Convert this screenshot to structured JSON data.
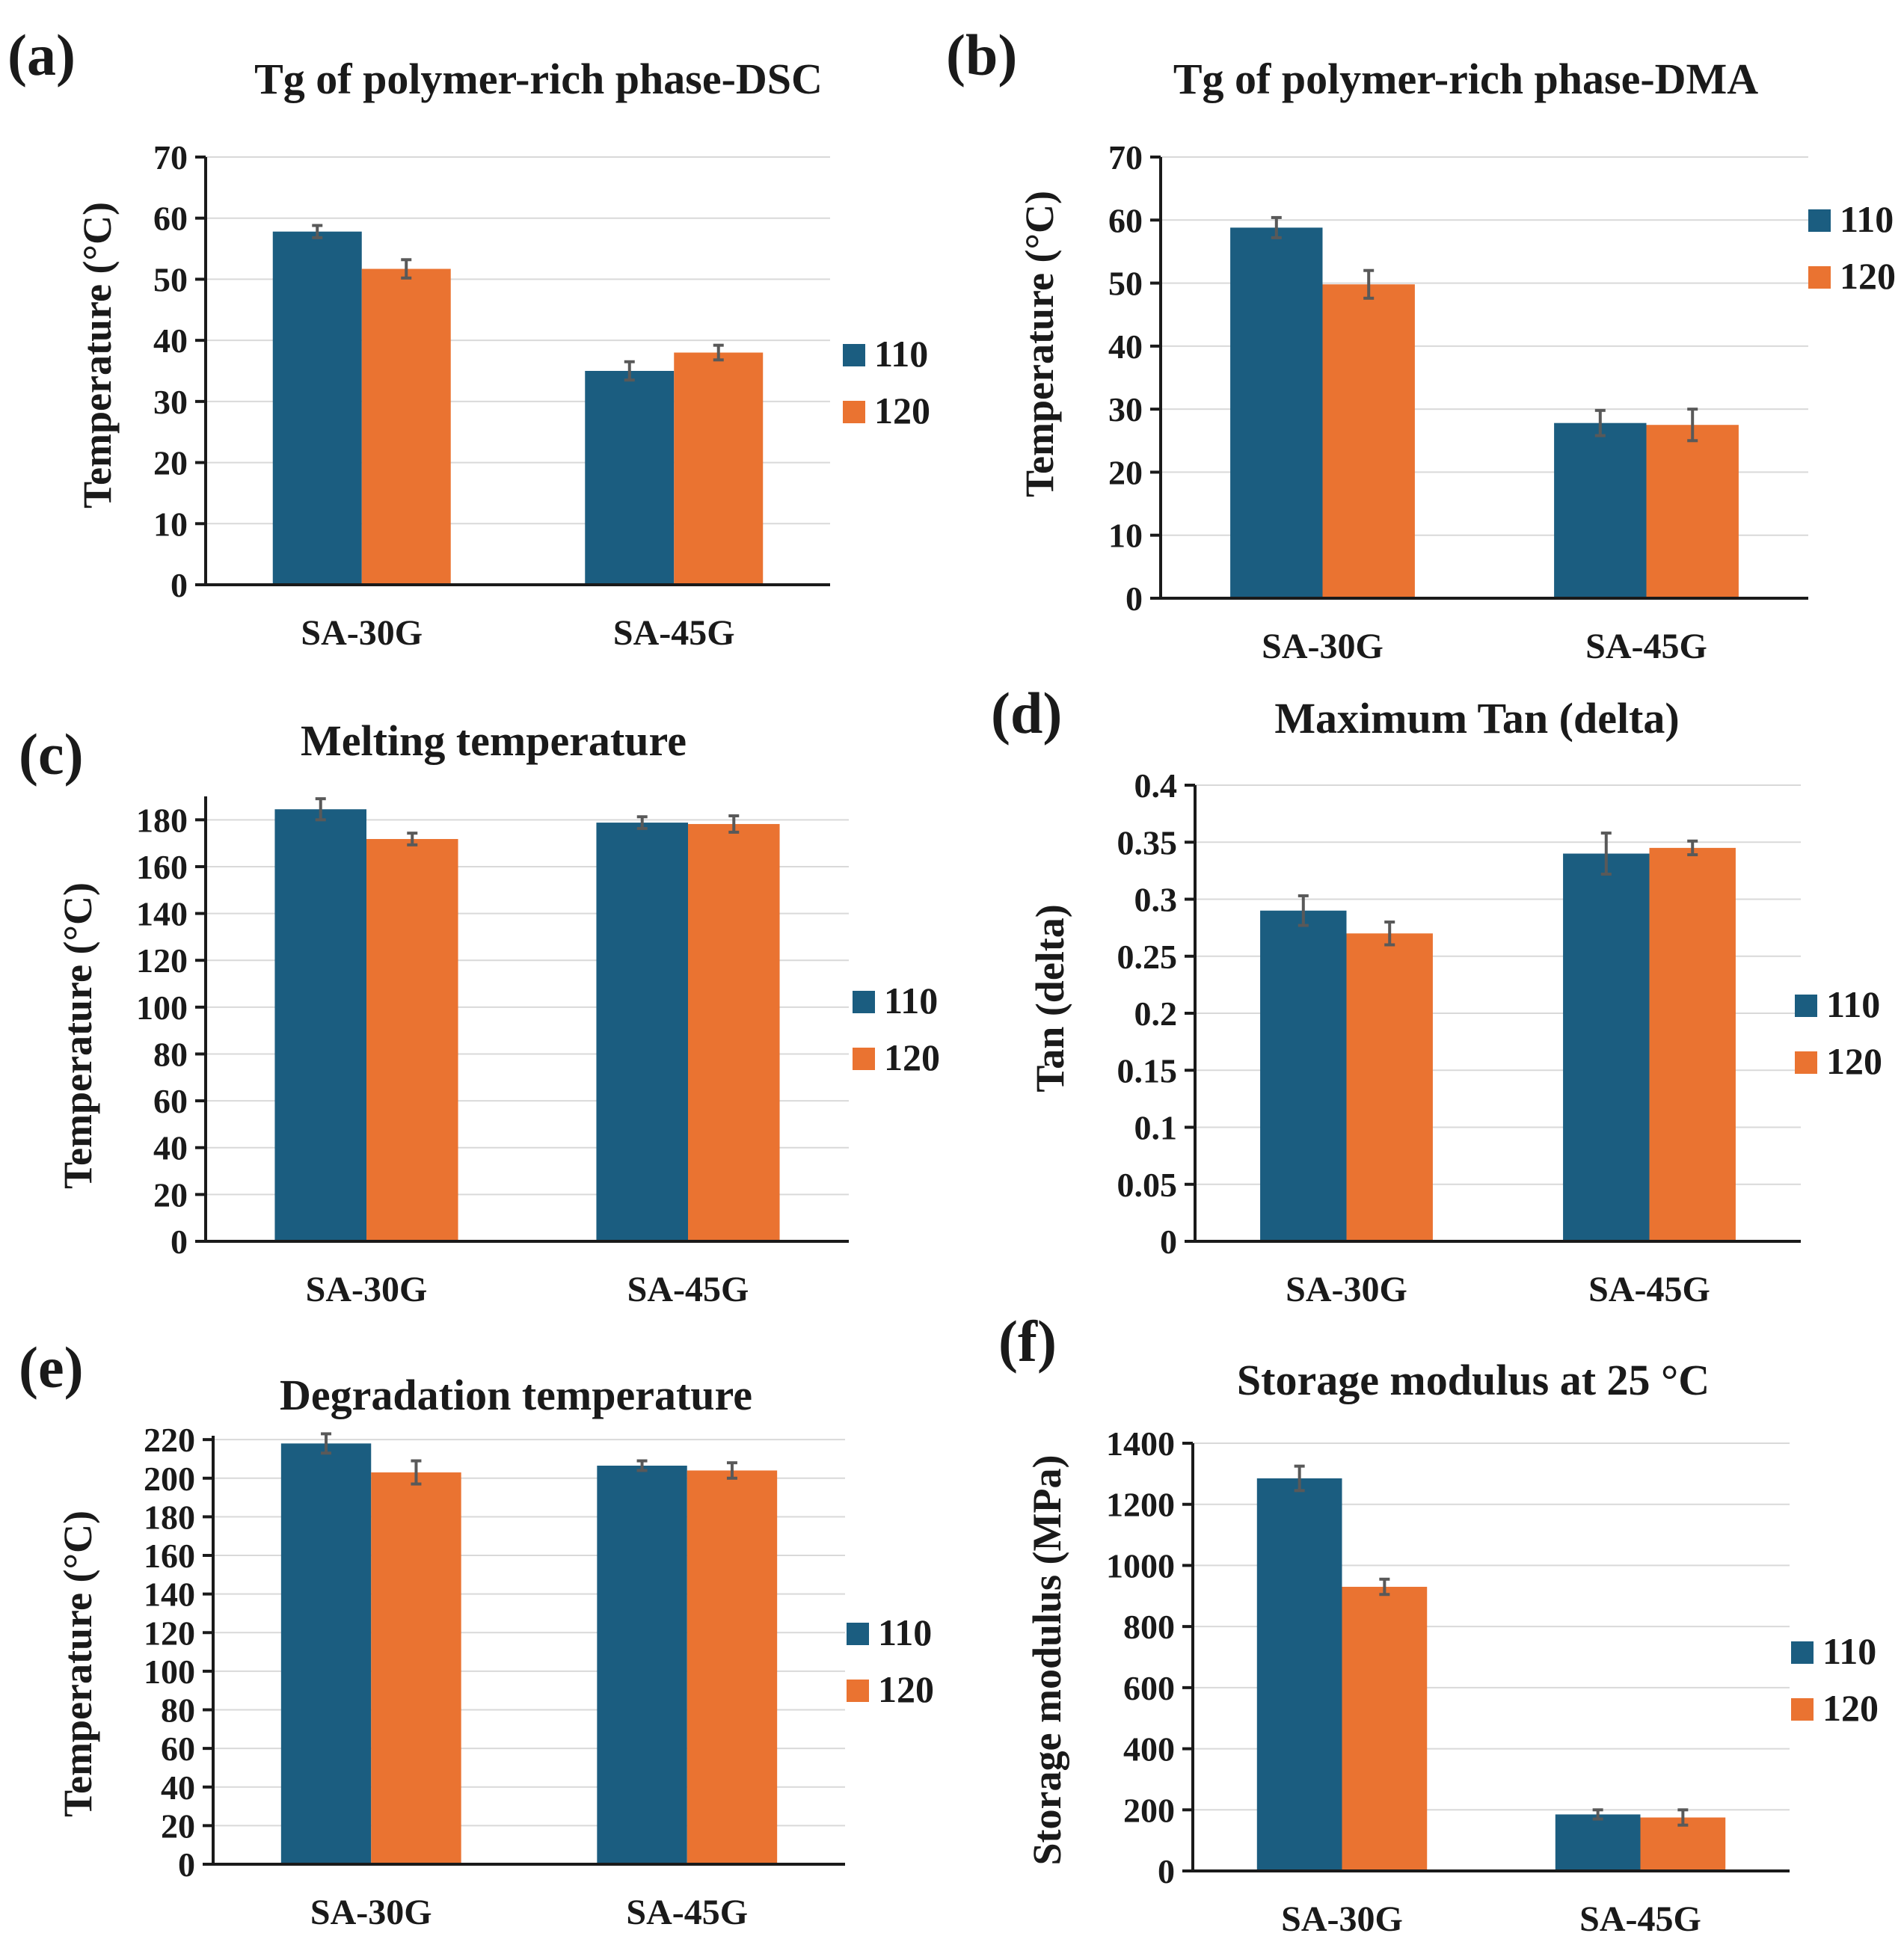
{
  "colors": {
    "s110": "#1b5d80",
    "s120": "#ea7331"
  },
  "chart_data": [
    {
      "panel": "(a)",
      "type": "bar",
      "title": "Tg of polymer-rich phase-DSC",
      "ylabel": "Temperature (°C)",
      "categories": [
        "SA-30G",
        "SA-45G"
      ],
      "ylim": [
        0,
        70
      ],
      "yticks": [
        "0",
        "10",
        "20",
        "30",
        "40",
        "50",
        "60",
        "70"
      ],
      "legend": [
        "110",
        "120"
      ],
      "series": [
        {
          "name": "110",
          "values": [
            57.8,
            35.0
          ],
          "errors": [
            1.0,
            1.5
          ]
        },
        {
          "name": "120",
          "values": [
            51.7,
            38.0
          ],
          "errors": [
            1.5,
            1.2
          ]
        }
      ]
    },
    {
      "panel": "(b)",
      "type": "bar",
      "title": "Tg of polymer-rich phase-DMA",
      "ylabel": "Temperature (°C)",
      "categories": [
        "SA-30G",
        "SA-45G"
      ],
      "ylim": [
        0,
        70
      ],
      "yticks": [
        "0",
        "10",
        "20",
        "30",
        "40",
        "50",
        "60",
        "70"
      ],
      "legend": [
        "110",
        "120"
      ],
      "series": [
        {
          "name": "110",
          "values": [
            58.8,
            27.8
          ],
          "errors": [
            1.6,
            2.0
          ]
        },
        {
          "name": "120",
          "values": [
            49.8,
            27.5
          ],
          "errors": [
            2.2,
            2.5
          ]
        }
      ]
    },
    {
      "panel": "(c)",
      "type": "bar",
      "title": "Melting temperature",
      "ylabel": "Temperature (°C)",
      "categories": [
        "SA-30G",
        "SA-45G"
      ],
      "ylim": [
        0,
        190
      ],
      "yticks": [
        "0",
        "20",
        "40",
        "60",
        "80",
        "100",
        "120",
        "140",
        "160",
        "180"
      ],
      "legend": [
        "110",
        "120"
      ],
      "series": [
        {
          "name": "110",
          "values": [
            184.5,
            178.8
          ],
          "errors": [
            4.5,
            2.5
          ]
        },
        {
          "name": "120",
          "values": [
            171.8,
            178.2
          ],
          "errors": [
            2.5,
            3.5
          ]
        }
      ]
    },
    {
      "panel": "(d)",
      "type": "bar",
      "title": "Maximum Tan (delta)",
      "ylabel": "Tan (delta)",
      "categories": [
        "SA-30G",
        "SA-45G"
      ],
      "ylim": [
        0,
        0.4
      ],
      "yticks": [
        "0",
        "0.05",
        "0.1",
        "0.15",
        "0.2",
        "0.25",
        "0.3",
        "0.35",
        "0.4"
      ],
      "legend": [
        "110",
        "120"
      ],
      "series": [
        {
          "name": "110",
          "values": [
            0.29,
            0.34
          ],
          "errors": [
            0.013,
            0.018
          ]
        },
        {
          "name": "120",
          "values": [
            0.27,
            0.345
          ],
          "errors": [
            0.01,
            0.006
          ]
        }
      ]
    },
    {
      "panel": "(e)",
      "type": "bar",
      "title": "Degradation temperature",
      "ylabel": "Temperature (°C)",
      "categories": [
        "SA-30G",
        "SA-45G"
      ],
      "ylim": [
        0,
        222
      ],
      "yticks": [
        "0",
        "20",
        "40",
        "60",
        "80",
        "100",
        "120",
        "140",
        "160",
        "180",
        "200",
        "220"
      ],
      "legend": [
        "110",
        "120"
      ],
      "series": [
        {
          "name": "110",
          "values": [
            218.0,
            206.5
          ],
          "errors": [
            5.0,
            2.5
          ]
        },
        {
          "name": "120",
          "values": [
            203.0,
            204.0
          ],
          "errors": [
            6.0,
            4.0
          ]
        }
      ]
    },
    {
      "panel": "(f)",
      "type": "bar",
      "title": "Storage modulus at 25 °C",
      "ylabel": "Storage modulus (MPa)",
      "categories": [
        "SA-30G",
        "SA-45G"
      ],
      "ylim": [
        0,
        1400
      ],
      "yticks": [
        "0",
        "200",
        "400",
        "600",
        "800",
        "1000",
        "1200",
        "1400"
      ],
      "legend": [
        "110",
        "120"
      ],
      "series": [
        {
          "name": "110",
          "values": [
            1285,
            185
          ],
          "errors": [
            40,
            15
          ]
        },
        {
          "name": "120",
          "values": [
            930,
            175
          ],
          "errors": [
            25,
            25
          ]
        }
      ]
    }
  ]
}
